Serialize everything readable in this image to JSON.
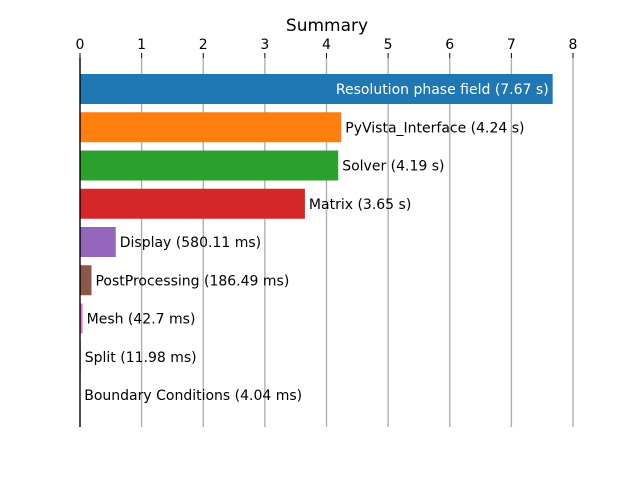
{
  "chart_data": {
    "type": "bar",
    "orientation": "horizontal",
    "title": "Summary",
    "xlabel": "",
    "ylabel": "",
    "xlim": [
      0,
      8
    ],
    "x_ticks": [
      0,
      1,
      2,
      3,
      4,
      5,
      6,
      7,
      8
    ],
    "x_axis_position": "top",
    "grid": "vertical",
    "unit": "s",
    "bars": [
      {
        "label": "Resolution phase field (7.67 s)",
        "value": 7.67,
        "color": "#1f77b4",
        "label_inside": true
      },
      {
        "label": "PyVista_Interface (4.24 s)",
        "value": 4.24,
        "color": "#ff7f0e",
        "label_inside": false
      },
      {
        "label": "Solver (4.19 s)",
        "value": 4.19,
        "color": "#2ca02c",
        "label_inside": false
      },
      {
        "label": "Matrix (3.65 s)",
        "value": 3.65,
        "color": "#d62728",
        "label_inside": false
      },
      {
        "label": "Display (580.11 ms)",
        "value": 0.58011,
        "color": "#9467bd",
        "label_inside": false
      },
      {
        "label": "PostProcessing (186.49 ms)",
        "value": 0.18649,
        "color": "#8c564b",
        "label_inside": false
      },
      {
        "label": "Mesh (42.7 ms)",
        "value": 0.0427,
        "color": "#e377c2",
        "label_inside": false
      },
      {
        "label": "Split (11.98 ms)",
        "value": 0.01198,
        "color": "#7f7f7f",
        "label_inside": false
      },
      {
        "label": "Boundary Conditions (4.04 ms)",
        "value": 0.00404,
        "color": "#bcbd22",
        "label_inside": false
      }
    ]
  }
}
